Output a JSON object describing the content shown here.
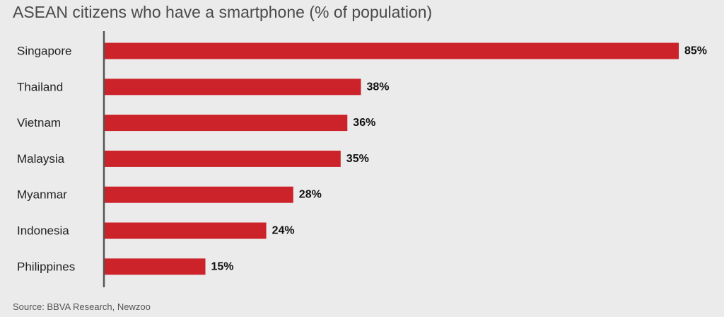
{
  "colors": {
    "bar": "#cc2229",
    "axis": "#555555",
    "category_text": "#222222",
    "value_text": "#111111"
  },
  "chart_data": {
    "type": "bar",
    "orientation": "horizontal",
    "title": "ASEAN citizens who have a smartphone (% of population)",
    "categories": [
      "Singapore",
      "Thailand",
      "Vietnam",
      "Malaysia",
      "Myanmar",
      "Indonesia",
      "Philippines"
    ],
    "values": [
      85,
      38,
      36,
      35,
      28,
      24,
      15
    ],
    "value_labels": [
      "85%",
      "38%",
      "36%",
      "35%",
      "28%",
      "24%",
      "15%"
    ],
    "xlim": [
      0,
      85
    ],
    "grid": false,
    "legend": "none",
    "source": "Source: BBVA Research, Newzoo"
  }
}
